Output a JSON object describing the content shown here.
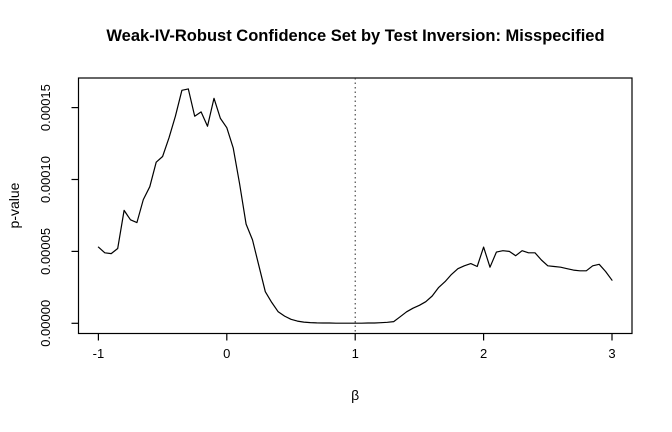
{
  "figure": {
    "title": "Weak-IV-Robust Confidence Set by Test Inversion: Misspecified",
    "xlabel": "β",
    "ylabel": "p-value"
  },
  "colors": {
    "background": "#ffffff",
    "curve": "#000000",
    "axis": "#000000",
    "reference_line": "#2a2a2a"
  },
  "chart_data": {
    "type": "line",
    "title": "Weak-IV-Robust Confidence Set by Test Inversion: Misspecified",
    "xlabel": "β",
    "ylabel": "p-value",
    "grid": false,
    "legend": null,
    "xlim": [
      -1.15,
      3.16
    ],
    "ylim": [
      -6.7e-06,
      0.00017
    ],
    "x_ticks": {
      "values": [
        -1,
        0,
        1,
        2,
        3
      ],
      "labels": [
        "-1",
        "0",
        "1",
        "2",
        "3"
      ]
    },
    "y_ticks": {
      "values": [
        0,
        5e-05,
        0.0001,
        0.00015
      ],
      "labels": [
        "0.00000",
        "0.00005",
        "0.00010",
        "0.00015"
      ]
    },
    "reference_line": {
      "x": 1,
      "style": "dotted"
    },
    "line_color": "#000000",
    "x": [
      -1.0,
      -0.95,
      -0.9,
      -0.85,
      -0.8,
      -0.75,
      -0.7,
      -0.65,
      -0.6,
      -0.55,
      -0.5,
      -0.45,
      -0.4,
      -0.35,
      -0.3,
      -0.25,
      -0.2,
      -0.15,
      -0.1,
      -0.05,
      0.0,
      0.05,
      0.1,
      0.15,
      0.2,
      0.25,
      0.3,
      0.35,
      0.4,
      0.45,
      0.5,
      0.55,
      0.6,
      0.65,
      0.7,
      0.75,
      0.8,
      0.85,
      0.9,
      0.95,
      1.0,
      1.05,
      1.1,
      1.15,
      1.2,
      1.25,
      1.3,
      1.35,
      1.4,
      1.45,
      1.5,
      1.55,
      1.6,
      1.65,
      1.7,
      1.75,
      1.8,
      1.85,
      1.9,
      1.95,
      2.0,
      2.05,
      2.1,
      2.15,
      2.2,
      2.25,
      2.3,
      2.35,
      2.4,
      2.45,
      2.5,
      2.55,
      2.6,
      2.65,
      2.7,
      2.75,
      2.8,
      2.85,
      2.9,
      2.95,
      3.0
    ],
    "p_values": [
      5.3e-05,
      4.9e-05,
      4.85e-05,
      5.2e-05,
      7.85e-05,
      7.2e-05,
      7e-05,
      8.6e-05,
      9.5e-05,
      0.000112,
      0.000116,
      0.000129,
      0.000144,
      0.000162,
      0.000163,
      0.000144,
      0.000147,
      0.000137,
      0.0001565,
      0.0001425,
      0.000136,
      0.000122,
      9.7e-05,
      6.9e-05,
      5.8e-05,
      4e-05,
      2.2e-05,
      1.45e-05,
      8e-06,
      5e-06,
      2.8e-06,
      1.5e-06,
      8e-07,
      5e-07,
      3e-07,
      2e-07,
      2e-07,
      1e-07,
      1e-07,
      1e-07,
      1e-07,
      1e-07,
      2e-07,
      2e-07,
      4e-07,
      7e-07,
      1.2e-06,
      4.5e-06,
      8e-06,
      1.05e-05,
      1.25e-05,
      1.5e-05,
      1.9e-05,
      2.5e-05,
      2.9e-05,
      3.4e-05,
      3.8e-05,
      4e-05,
      4.15e-05,
      3.95e-05,
      5.3e-05,
      3.9e-05,
      4.95e-05,
      5.05e-05,
      5e-05,
      4.7e-05,
      5.05e-05,
      4.9e-05,
      4.9e-05,
      4.4e-05,
      4e-05,
      3.95e-05,
      3.9e-05,
      3.8e-05,
      3.7e-05,
      3.65e-05,
      3.65e-05,
      4e-05,
      4.1e-05,
      3.6e-05,
      3e-05
    ]
  }
}
